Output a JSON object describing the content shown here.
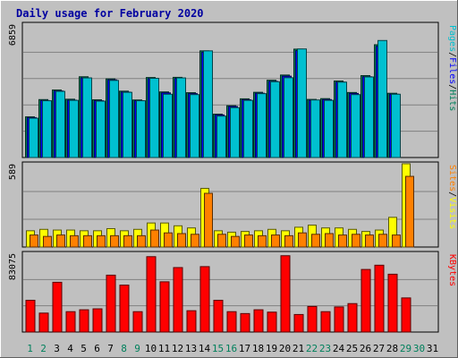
{
  "chart_data": {
    "type": "bar",
    "title": "Daily usage for February 2020",
    "categories": [
      "1",
      "2",
      "3",
      "4",
      "5",
      "6",
      "7",
      "8",
      "9",
      "10",
      "11",
      "12",
      "13",
      "14",
      "15",
      "16",
      "17",
      "18",
      "19",
      "20",
      "21",
      "22",
      "23",
      "24",
      "25",
      "26",
      "27",
      "28",
      "29",
      "30",
      "31"
    ],
    "weekend_days": [
      "1",
      "2",
      "8",
      "9",
      "15",
      "16",
      "22",
      "23",
      "29",
      "30"
    ],
    "panels": [
      {
        "id": "hits",
        "max_label": "6859",
        "ylim": [
          0,
          6859
        ],
        "ylabel": [
          "Pages",
          "Files",
          "Hits"
        ],
        "ylabel_colors": [
          "#00c0d0",
          "#0000ff",
          "#00805c"
        ],
        "series": [
          {
            "name": "Hits",
            "color": "#00805c",
            "values": [
              2120,
              3020,
              3520,
              3040,
              4210,
              3010,
              4100,
              3460,
              3000,
              4170,
              3420,
              4180,
              3380,
              5560,
              2260,
              2700,
              3060,
              3400,
              4030,
              4300,
              5650,
              3030,
              3070,
              3990,
              3390,
              4270,
              5880,
              3350,
              null,
              null,
              null
            ]
          },
          {
            "name": "Files",
            "color": "#0000ff",
            "values": [
              2080,
              2970,
              3470,
              2990,
              4150,
              2960,
              4050,
              3410,
              2960,
              4110,
              3370,
              4120,
              3330,
              5490,
              2220,
              2660,
              3010,
              3350,
              3970,
              4240,
              5570,
              2980,
              3020,
              3930,
              3340,
              4210,
              5800,
              3300,
              null,
              null,
              null
            ]
          },
          {
            "name": "Pages",
            "color": "#00c0d0",
            "values": [
              2050,
              2960,
              3450,
              2980,
              4150,
              2940,
              4020,
              3400,
              2960,
              4130,
              3300,
              4150,
              3280,
              5560,
              2160,
              2600,
              2980,
              3330,
              3950,
              4160,
              5660,
              3000,
              2980,
              3930,
              3280,
              4200,
              6100,
              3300,
              null,
              null,
              null
            ]
          }
        ]
      },
      {
        "id": "visits",
        "max_label": "589",
        "ylim": [
          0,
          589
        ],
        "ylabel": [
          "Sites",
          "Visits"
        ],
        "ylabel_colors": [
          "#ff8000",
          "#ffff00"
        ],
        "series": [
          {
            "name": "Visits",
            "color": "#ffff00",
            "values": [
              115,
              125,
              120,
              120,
              115,
              115,
              130,
              115,
              125,
              170,
              170,
              150,
              135,
              415,
              115,
              105,
              110,
              115,
              125,
              115,
              140,
              155,
              135,
              135,
              125,
              110,
              120,
              210,
              589,
              null,
              null
            ]
          },
          {
            "name": "Sites",
            "color": "#ff8000",
            "values": [
              85,
              75,
              85,
              80,
              80,
              80,
              80,
              80,
              80,
              120,
              100,
              95,
              90,
              380,
              90,
              75,
              85,
              80,
              85,
              80,
              100,
              90,
              95,
              85,
              90,
              85,
              90,
              85,
              500,
              null,
              null
            ]
          }
        ]
      },
      {
        "id": "kbytes",
        "max_label": "83075",
        "ylim": [
          0,
          83075
        ],
        "ylabel": [
          "KBytes"
        ],
        "ylabel_colors": [
          "#ff0000"
        ],
        "series": [
          {
            "name": "KBytes",
            "color": "#ff0000",
            "values": [
              33500,
              20000,
              52500,
              21500,
              23500,
              24500,
              60000,
              49500,
              21500,
              79500,
              53000,
              68000,
              22500,
              69000,
              33500,
              21500,
              19500,
              23500,
              21000,
              80500,
              18500,
              27000,
              21500,
              26500,
              30000,
              66000,
              70500,
              61000,
              36000,
              null,
              null
            ]
          }
        ]
      }
    ]
  }
}
